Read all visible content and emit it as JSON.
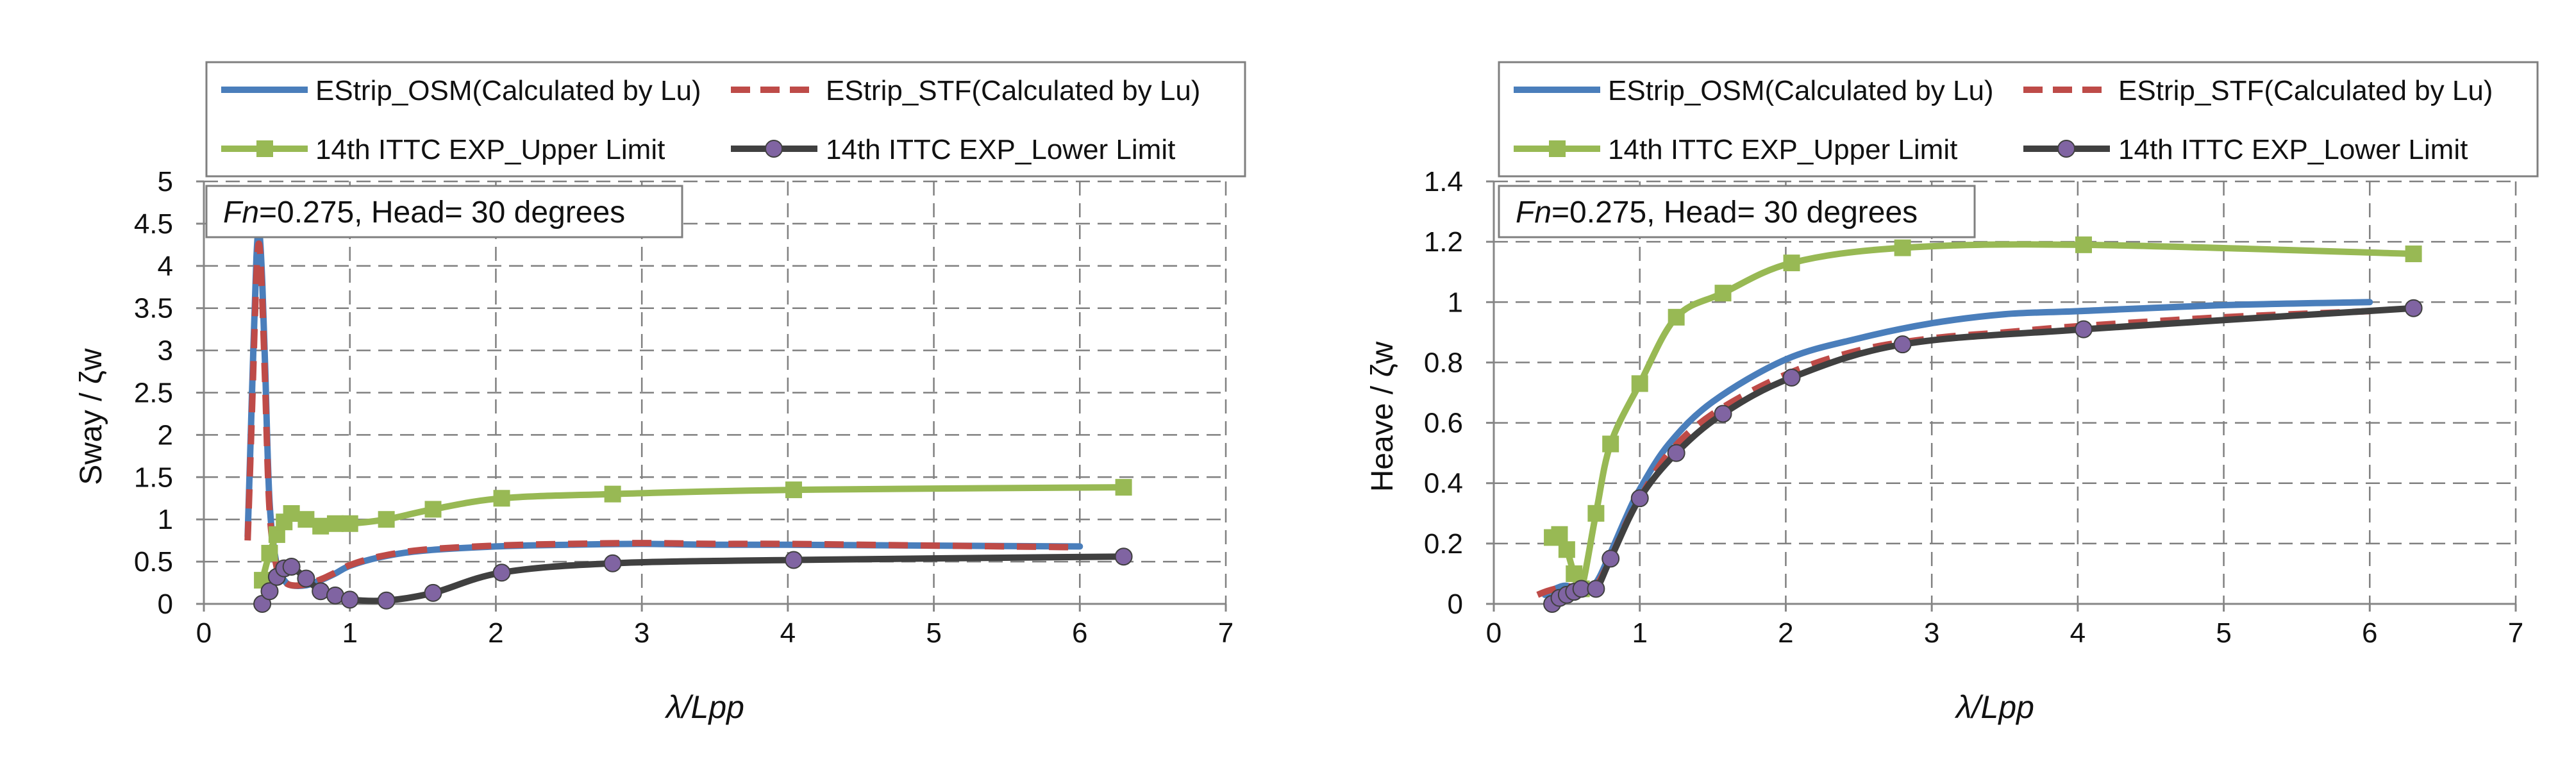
{
  "colors": {
    "osm": "#4a7ebb",
    "stf": "#be4b48",
    "upper": "#98b954",
    "lower": "#404040",
    "lower_marker": "#8064a2",
    "grid": "#808080",
    "axis": "#868686",
    "box": "#7f7f7f"
  },
  "chart_data": [
    {
      "type": "line",
      "title": "",
      "annotation": {
        "italic": "Fn",
        "rest": "=0.275, Head= 30 degrees"
      },
      "xlabel": "λ/Lpp",
      "ylabel": "Sway / ζw",
      "xlim": [
        0,
        7
      ],
      "ylim": [
        0,
        5
      ],
      "xticks": [
        0,
        1,
        2,
        3,
        4,
        5,
        6,
        7
      ],
      "xtick_labels": [
        "0",
        "1",
        "2",
        "3",
        "4",
        "5",
        "6",
        "7"
      ],
      "yticks": [
        0,
        0.5,
        1,
        1.5,
        2,
        2.5,
        3,
        3.5,
        4,
        4.5,
        5
      ],
      "ytick_labels": [
        "0",
        "0.5",
        "1",
        "1.5",
        "2",
        "2.5",
        "3",
        "3.5",
        "4",
        "4.5",
        "5"
      ],
      "grid": true,
      "legend": [
        "EStrip_OSM(Calculated by Lu)",
        "EStrip_STF(Calculated by Lu)",
        "14th ITTC EXP_Upper Limit",
        "14th ITTC EXP_Lower Limit"
      ],
      "series": [
        {
          "name": "EStrip_OSM(Calculated by Lu)",
          "x": [
            0.3,
            0.33,
            0.36,
            0.38,
            0.4,
            0.42,
            0.45,
            0.5,
            0.55,
            0.6,
            0.7,
            0.8,
            0.9,
            1.0,
            1.2,
            1.5,
            2.0,
            2.5,
            3.0,
            3.5,
            4.0,
            5.0,
            6.0
          ],
          "y": [
            0.8,
            2.5,
            4.1,
            4.4,
            3.8,
            2.8,
            1.2,
            0.45,
            0.28,
            0.22,
            0.22,
            0.28,
            0.36,
            0.45,
            0.55,
            0.63,
            0.68,
            0.7,
            0.71,
            0.7,
            0.7,
            0.69,
            0.68
          ]
        },
        {
          "name": "EStrip_STF(Calculated by Lu)",
          "x": [
            0.3,
            0.33,
            0.36,
            0.38,
            0.4,
            0.42,
            0.45,
            0.5,
            0.55,
            0.6,
            0.7,
            0.8,
            0.9,
            1.0,
            1.2,
            1.5,
            2.0,
            2.5,
            3.0,
            3.5,
            4.0,
            5.0,
            6.0
          ],
          "y": [
            0.75,
            2.3,
            3.9,
            4.25,
            3.6,
            2.6,
            1.1,
            0.42,
            0.27,
            0.22,
            0.23,
            0.29,
            0.37,
            0.46,
            0.56,
            0.64,
            0.69,
            0.71,
            0.72,
            0.71,
            0.71,
            0.69,
            0.67
          ]
        },
        {
          "name": "14th ITTC EXP_Upper Limit",
          "x": [
            0.4,
            0.45,
            0.5,
            0.55,
            0.6,
            0.7,
            0.8,
            0.9,
            1.0,
            1.25,
            1.57,
            2.04,
            2.8,
            4.04,
            6.3
          ],
          "y": [
            0.28,
            0.6,
            0.82,
            0.97,
            1.07,
            1.0,
            0.92,
            0.95,
            0.95,
            1.0,
            1.12,
            1.25,
            1.3,
            1.35,
            1.38
          ]
        },
        {
          "name": "14th ITTC EXP_Lower Limit",
          "x": [
            0.4,
            0.45,
            0.5,
            0.55,
            0.6,
            0.7,
            0.8,
            0.9,
            1.0,
            1.25,
            1.57,
            2.04,
            2.8,
            4.04,
            6.3
          ],
          "y": [
            0.0,
            0.15,
            0.32,
            0.42,
            0.44,
            0.3,
            0.15,
            0.1,
            0.05,
            0.04,
            0.13,
            0.37,
            0.48,
            0.52,
            0.56
          ]
        }
      ]
    },
    {
      "type": "line",
      "title": "",
      "annotation": {
        "italic": "Fn",
        "rest": "=0.275, Head= 30 degrees"
      },
      "xlabel": "λ/Lpp",
      "ylabel": "Heave / ζw",
      "xlim": [
        0,
        7
      ],
      "ylim": [
        0,
        1.4
      ],
      "xticks": [
        0,
        1,
        2,
        3,
        4,
        5,
        6,
        7
      ],
      "xtick_labels": [
        "0",
        "1",
        "2",
        "3",
        "4",
        "5",
        "6",
        "7"
      ],
      "yticks": [
        0,
        0.2,
        0.4,
        0.6,
        0.8,
        1.0,
        1.2,
        1.4
      ],
      "ytick_labels": [
        "0",
        "0.2",
        "0.4",
        "0.6",
        "0.8",
        "1",
        "1.2",
        "1.4"
      ],
      "grid": true,
      "legend": [
        "EStrip_OSM(Calculated by Lu)",
        "EStrip_STF(Calculated by Lu)",
        "14th ITTC EXP_Upper Limit",
        "14th ITTC EXP_Lower Limit"
      ],
      "series": [
        {
          "name": "EStrip_OSM(Calculated by Lu)",
          "x": [
            0.35,
            0.42,
            0.5,
            0.6,
            0.7,
            0.8,
            0.9,
            1.0,
            1.2,
            1.5,
            2.0,
            2.5,
            3.0,
            3.5,
            4.0,
            5.0,
            6.0
          ],
          "y": [
            0.03,
            0.05,
            0.06,
            0.04,
            0.07,
            0.17,
            0.28,
            0.38,
            0.53,
            0.67,
            0.81,
            0.88,
            0.93,
            0.96,
            0.97,
            0.99,
            1.0
          ]
        },
        {
          "name": "EStrip_STF(Calculated by Lu)",
          "x": [
            0.3,
            0.35,
            0.42,
            0.5,
            0.6,
            0.7,
            0.8,
            0.9,
            1.0,
            1.2,
            1.5,
            2.0,
            2.5,
            3.0,
            3.5,
            4.0,
            5.0,
            6.0
          ],
          "y": [
            0.03,
            0.04,
            0.05,
            0.06,
            0.04,
            0.06,
            0.15,
            0.26,
            0.35,
            0.5,
            0.63,
            0.76,
            0.84,
            0.88,
            0.9,
            0.92,
            0.95,
            0.97
          ]
        },
        {
          "name": "14th ITTC EXP_Upper Limit",
          "x": [
            0.4,
            0.45,
            0.5,
            0.55,
            0.6,
            0.7,
            0.8,
            1.0,
            1.25,
            1.57,
            2.04,
            2.8,
            4.04,
            6.3
          ],
          "y": [
            0.22,
            0.23,
            0.18,
            0.1,
            0.05,
            0.3,
            0.53,
            0.73,
            0.95,
            1.03,
            1.13,
            1.18,
            1.19,
            1.16
          ]
        },
        {
          "name": "14th ITTC EXP_Lower Limit",
          "x": [
            0.4,
            0.45,
            0.5,
            0.55,
            0.6,
            0.7,
            0.8,
            1.0,
            1.25,
            1.57,
            2.04,
            2.8,
            4.04,
            6.3
          ],
          "y": [
            0.0,
            0.02,
            0.03,
            0.04,
            0.05,
            0.05,
            0.15,
            0.35,
            0.5,
            0.63,
            0.75,
            0.86,
            0.91,
            0.98
          ]
        }
      ]
    }
  ]
}
